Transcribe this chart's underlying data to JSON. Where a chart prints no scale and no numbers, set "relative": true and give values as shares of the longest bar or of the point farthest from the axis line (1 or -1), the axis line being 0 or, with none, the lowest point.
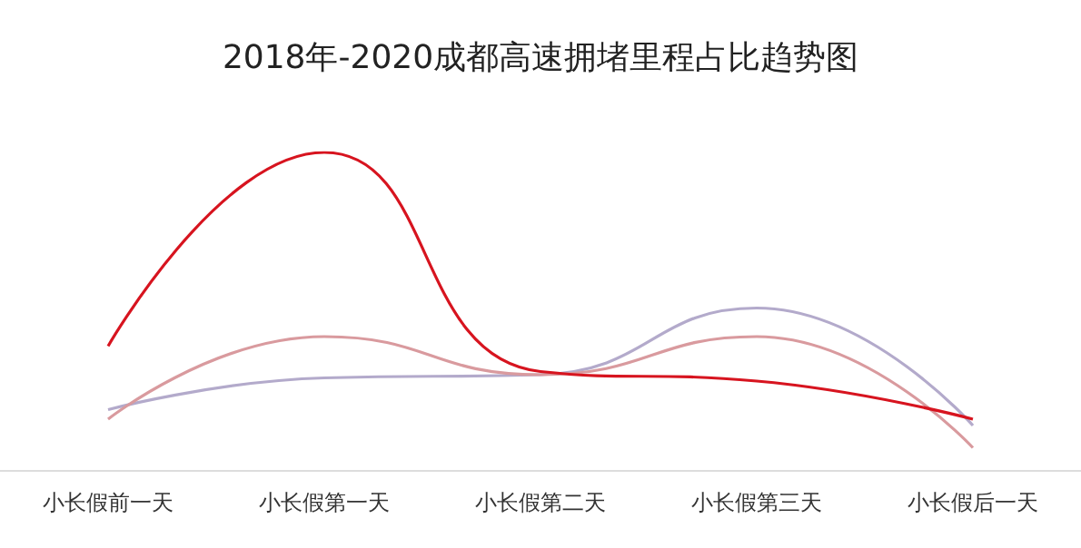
{
  "chart_data": {
    "type": "line",
    "title": "2018年-2020成都高速拥堵里程占比趋势图",
    "relative": true,
    "categories": [
      "小长假前一天",
      "小长假第一天",
      "小长假第二天",
      "小长假第三天",
      "小长假后一天"
    ],
    "series": [
      {
        "color": "#b3aacb",
        "values": [
          0.19,
          0.29,
          0.3,
          0.51,
          0.14
        ]
      },
      {
        "color": "#d99a9e",
        "values": [
          0.16,
          0.42,
          0.3,
          0.42,
          0.07
        ]
      },
      {
        "color": "#d7141f",
        "values": [
          0.39,
          1,
          0.31,
          0.28,
          0.16
        ]
      }
    ],
    "grid": false,
    "marker": "none",
    "line_style": "solid"
  }
}
